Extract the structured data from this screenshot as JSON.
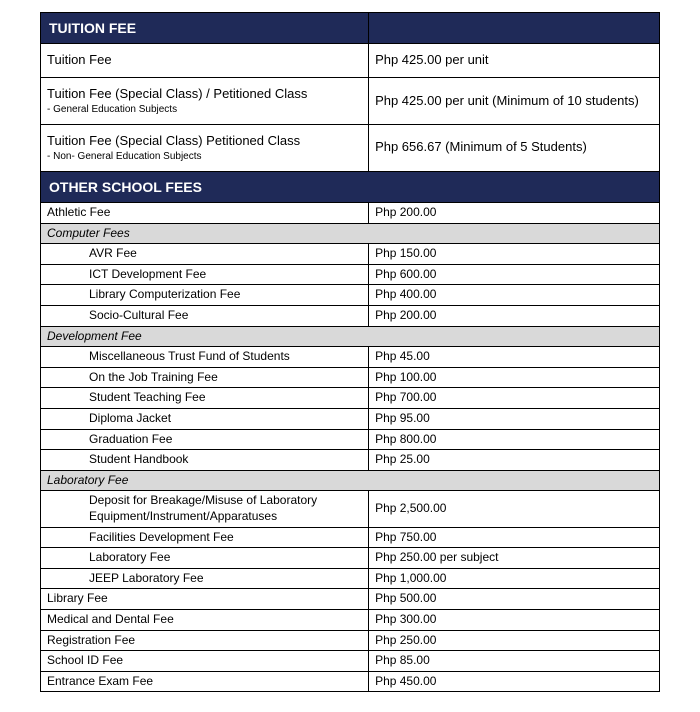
{
  "colors": {
    "header_bg": "#1f2a58",
    "header_text": "#ffffff",
    "group_bg": "#d9d9d9",
    "border": "#000000",
    "text": "#000000",
    "page_bg": "#ffffff"
  },
  "columns": {
    "left_width_pct": 53,
    "right_width_pct": 47
  },
  "section1": {
    "title": "TUITION FEE",
    "rows": [
      {
        "label": "Tuition Fee",
        "sub": "",
        "value": "Php 425.00 per unit"
      },
      {
        "label": "Tuition Fee (Special Class) / Petitioned Class",
        "sub": "- General Education Subjects",
        "value": "Php 425.00 per unit (Minimum of 10 students)"
      },
      {
        "label": "Tuition Fee (Special Class)  Petitioned Class",
        "sub": "- Non- General Education Subjects",
        "value": "Php 656.67 (Minimum of 5 Students)"
      }
    ]
  },
  "section2": {
    "title": "OTHER SCHOOL FEES",
    "rows": [
      {
        "type": "item",
        "indent": 0,
        "label": "Athletic Fee",
        "value": "Php 200.00"
      },
      {
        "type": "group",
        "label": "Computer Fees"
      },
      {
        "type": "item",
        "indent": 1,
        "label": "AVR Fee",
        "value": "Php 150.00"
      },
      {
        "type": "item",
        "indent": 1,
        "label": "ICT Development Fee",
        "value": "Php 600.00"
      },
      {
        "type": "item",
        "indent": 1,
        "label": "Library Computerization Fee",
        "value": "Php 400.00"
      },
      {
        "type": "item",
        "indent": 1,
        "label": "Socio-Cultural Fee",
        "value": "Php 200.00"
      },
      {
        "type": "group",
        "label": "Development Fee"
      },
      {
        "type": "item",
        "indent": 1,
        "label": "Miscellaneous Trust Fund of Students",
        "value": "Php 45.00"
      },
      {
        "type": "item",
        "indent": 1,
        "label": "On the Job Training Fee",
        "value": "Php 100.00"
      },
      {
        "type": "item",
        "indent": 1,
        "label": "Student Teaching Fee",
        "value": "Php 700.00"
      },
      {
        "type": "item",
        "indent": 1,
        "label": "Diploma Jacket",
        "value": "Php 95.00"
      },
      {
        "type": "item",
        "indent": 1,
        "label": "Graduation Fee",
        "value": "Php 800.00"
      },
      {
        "type": "item",
        "indent": 1,
        "label": "Student Handbook",
        "value": "Php 25.00"
      },
      {
        "type": "group",
        "label": "Laboratory Fee"
      },
      {
        "type": "item",
        "indent": 1,
        "label": "Deposit for Breakage/Misuse of Laboratory Equipment/Instrument/Apparatuses",
        "value": "Php 2,500.00"
      },
      {
        "type": "item",
        "indent": 1,
        "label": "Facilities Development Fee",
        "value": "Php 750.00"
      },
      {
        "type": "item",
        "indent": 1,
        "label": "Laboratory Fee",
        "value": "Php 250.00 per subject"
      },
      {
        "type": "item",
        "indent": 1,
        "label": "JEEP Laboratory Fee",
        "value": "Php 1,000.00"
      },
      {
        "type": "item",
        "indent": 0,
        "label": "Library Fee",
        "value": "Php 500.00"
      },
      {
        "type": "item",
        "indent": 0,
        "label": "Medical and Dental Fee",
        "value": "Php 300.00"
      },
      {
        "type": "item",
        "indent": 0,
        "label": "Registration Fee",
        "value": "Php 250.00"
      },
      {
        "type": "item",
        "indent": 0,
        "label": "School ID Fee",
        "value": "Php 85.00"
      },
      {
        "type": "item",
        "indent": 0,
        "label": "Entrance Exam Fee",
        "value": "Php 450.00"
      }
    ]
  }
}
